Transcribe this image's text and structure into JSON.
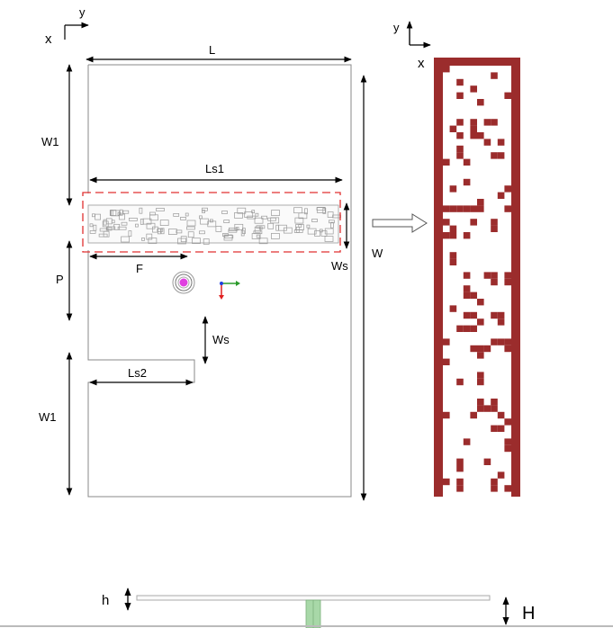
{
  "axes_left": {
    "x_label": "x",
    "y_label": "y"
  },
  "axes_right": {
    "x_label": "x",
    "y_label": "y"
  },
  "dimensions": {
    "L": "L",
    "W": "W",
    "W1_top": "W1",
    "W1_bottom": "W1",
    "Ls1": "Ls1",
    "Ls2": "Ls2",
    "Ws_slot": "Ws",
    "Ws_notch": "Ws",
    "F": "F",
    "P": "P",
    "h": "h",
    "H": "H"
  },
  "colors": {
    "pattern": "#9b2c2c",
    "highlight_box": "#e03030",
    "feed_point": "#e040e0",
    "ground_post": "#a8d8a8"
  }
}
